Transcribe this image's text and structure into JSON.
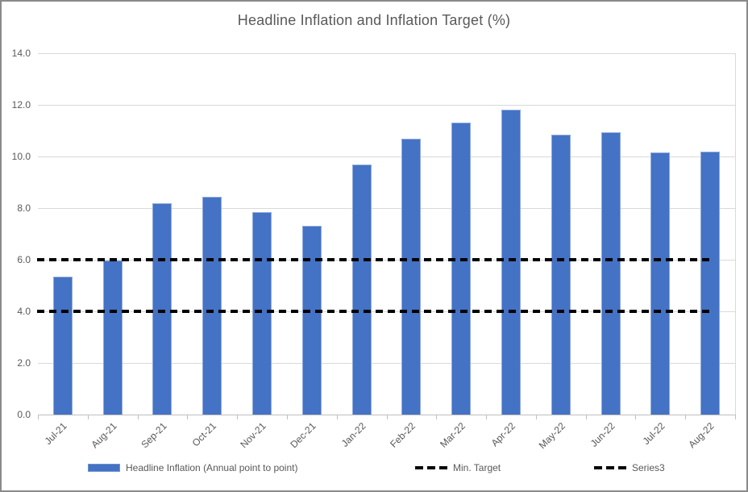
{
  "title": "Headline Inflation and Inflation Target (%)",
  "colors": {
    "bar_fill": "#4472C4",
    "bar_border": "#8FAADC",
    "target_line": "#000000",
    "gridline": "#D9D9D9",
    "axis_line": "#BFBFBF",
    "text": "#595959",
    "chart_border": "#8A8A8A",
    "background": "#FFFFFF"
  },
  "y_axis": {
    "tick_labels_top_to_bottom": [
      "14.0",
      "12.0",
      "10.0",
      "8.0",
      "6.0",
      "4.0",
      "2.0",
      "0.0"
    ],
    "min": 0,
    "max": 14,
    "step": 2
  },
  "legend": {
    "items": [
      {
        "label": "Headline Inflation (Annual point to point)",
        "swatch": "bar"
      },
      {
        "label": "Min. Target",
        "swatch": "dash"
      },
      {
        "label": "Series3",
        "swatch": "dash"
      }
    ]
  },
  "chart_data": {
    "type": "bar",
    "title": "Headline Inflation and Inflation Target (%)",
    "categories": [
      "Jul-21",
      "Aug-21",
      "Sep-21",
      "Oct-21",
      "Nov-21",
      "Dec-21",
      "Jan-22",
      "Feb-22",
      "Mar-22",
      "Apr-22",
      "May-22",
      "Jun-22",
      "Jul-22",
      "Aug-22"
    ],
    "series": [
      {
        "name": "Headline Inflation (Annual point to point)",
        "type": "bar",
        "values": [
          5.35,
          5.98,
          8.2,
          8.45,
          7.85,
          7.3,
          9.7,
          10.7,
          11.3,
          11.8,
          10.85,
          10.95,
          10.15,
          10.2
        ]
      },
      {
        "name": "Min. Target",
        "type": "line",
        "style": "dashed",
        "constant_value": 4.0
      },
      {
        "name": "Series3",
        "type": "line",
        "style": "dashed",
        "constant_value": 6.0
      }
    ],
    "xlabel": "",
    "ylabel": "",
    "ylim": [
      0,
      14
    ],
    "grid": true,
    "legend_position": "bottom"
  }
}
